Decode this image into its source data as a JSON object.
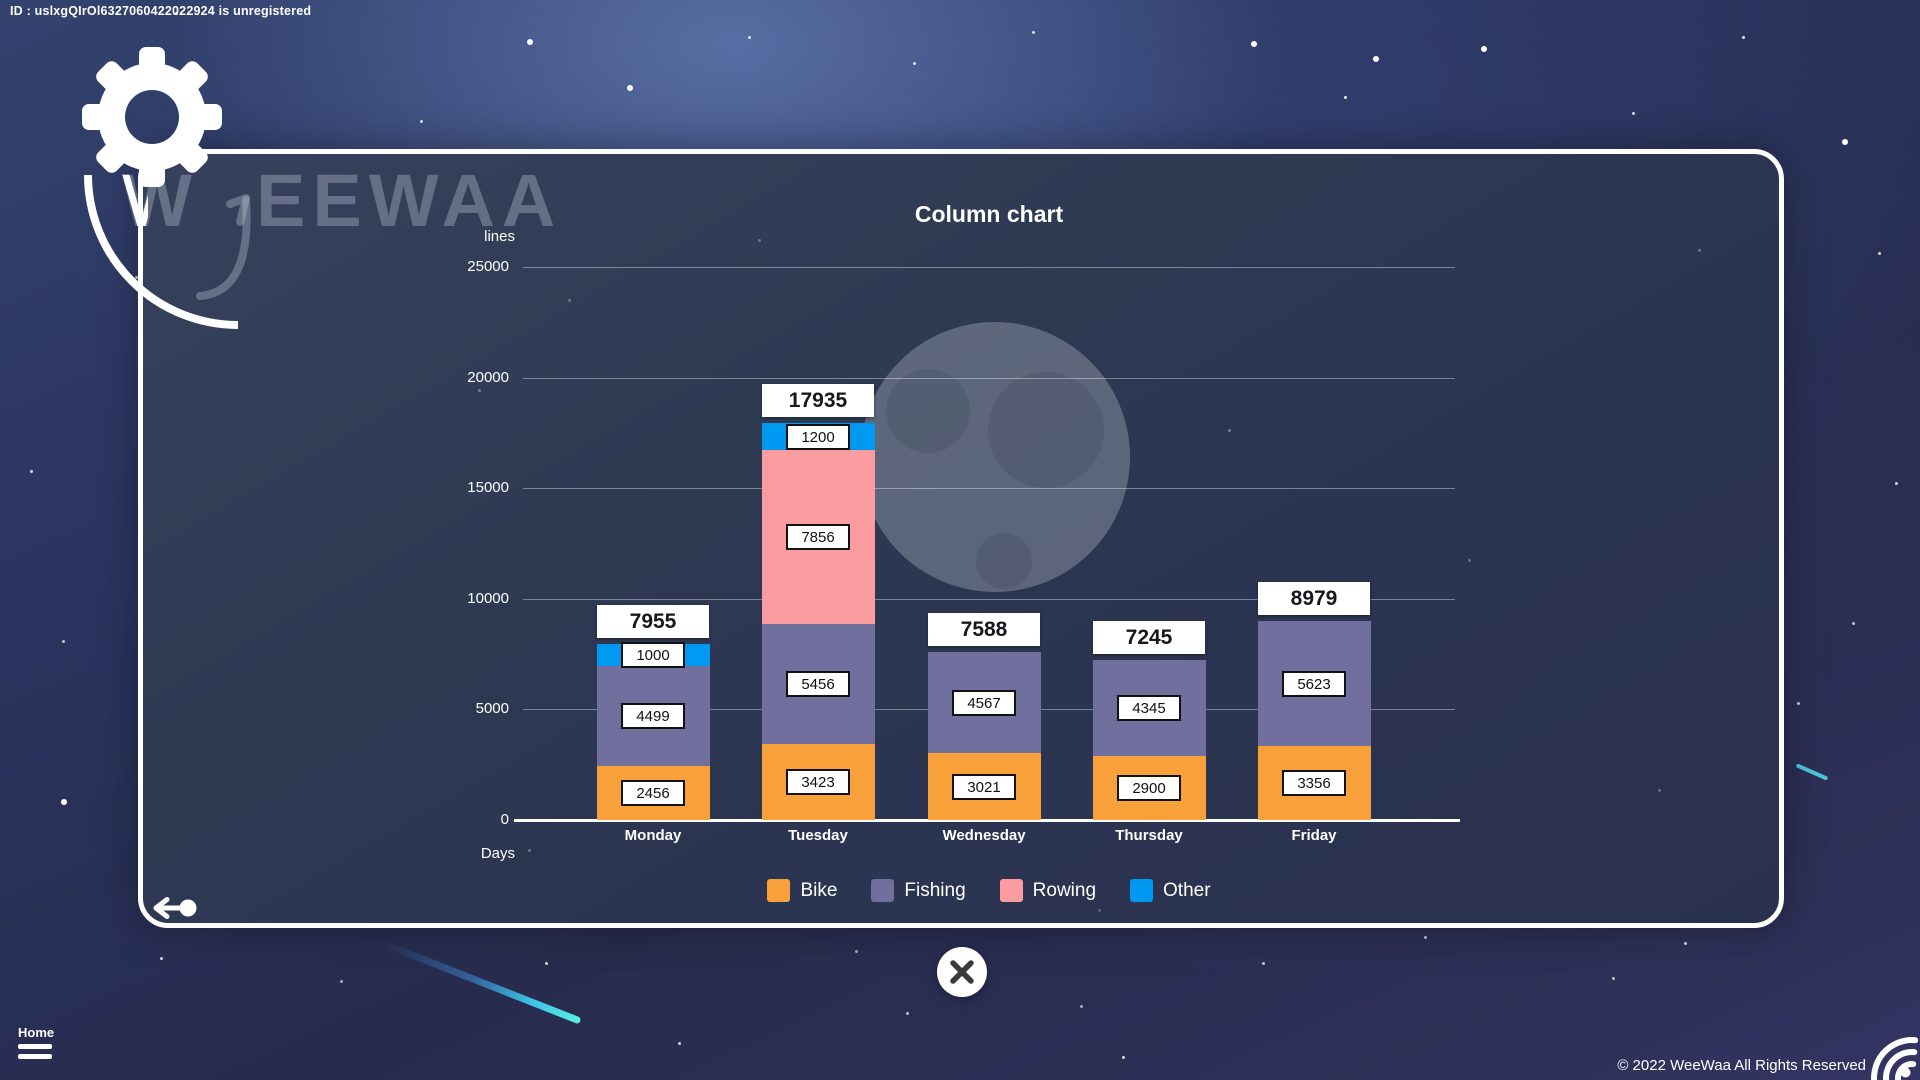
{
  "page": {
    "id_banner": "ID : uslxgQIrOl6327060422022924 is unregistered",
    "brand_watermark": {
      "w": "W",
      "rest": "EEWAA"
    },
    "home_label": "Home",
    "copyright": "© 2022 WeeWaa All Rights Reserved",
    "accent_colors": {
      "comet": "#55F0E0",
      "panel_border": "#FFFFFF"
    }
  },
  "chart_data": {
    "type": "bar",
    "stacked": true,
    "title": "Column chart",
    "ylabel": "lines",
    "xlabel": "Days",
    "categories": [
      "Monday",
      "Tuesday",
      "Wednesday",
      "Thursday",
      "Friday"
    ],
    "series": [
      {
        "name": "Bike",
        "color": "#F8A13B",
        "values": [
          2456,
          3423,
          3021,
          2900,
          3356
        ]
      },
      {
        "name": "Fishing",
        "color": "#706F9D",
        "values": [
          4499,
          5456,
          4567,
          4345,
          5623
        ]
      },
      {
        "name": "Rowing",
        "color": "#FB9DA0",
        "values": [
          0,
          7856,
          0,
          0,
          0
        ]
      },
      {
        "name": "Other",
        "color": "#0099F2",
        "values": [
          1000,
          1200,
          0,
          0,
          0
        ]
      }
    ],
    "totals": [
      7955,
      17935,
      7588,
      7245,
      8979
    ],
    "ylim": [
      0,
      25000
    ],
    "yticks": [
      0,
      5000,
      10000,
      15000,
      20000,
      25000
    ],
    "grid": true,
    "legend": [
      "Bike",
      "Fishing",
      "Rowing",
      "Other"
    ],
    "legend_position": "bottom"
  }
}
